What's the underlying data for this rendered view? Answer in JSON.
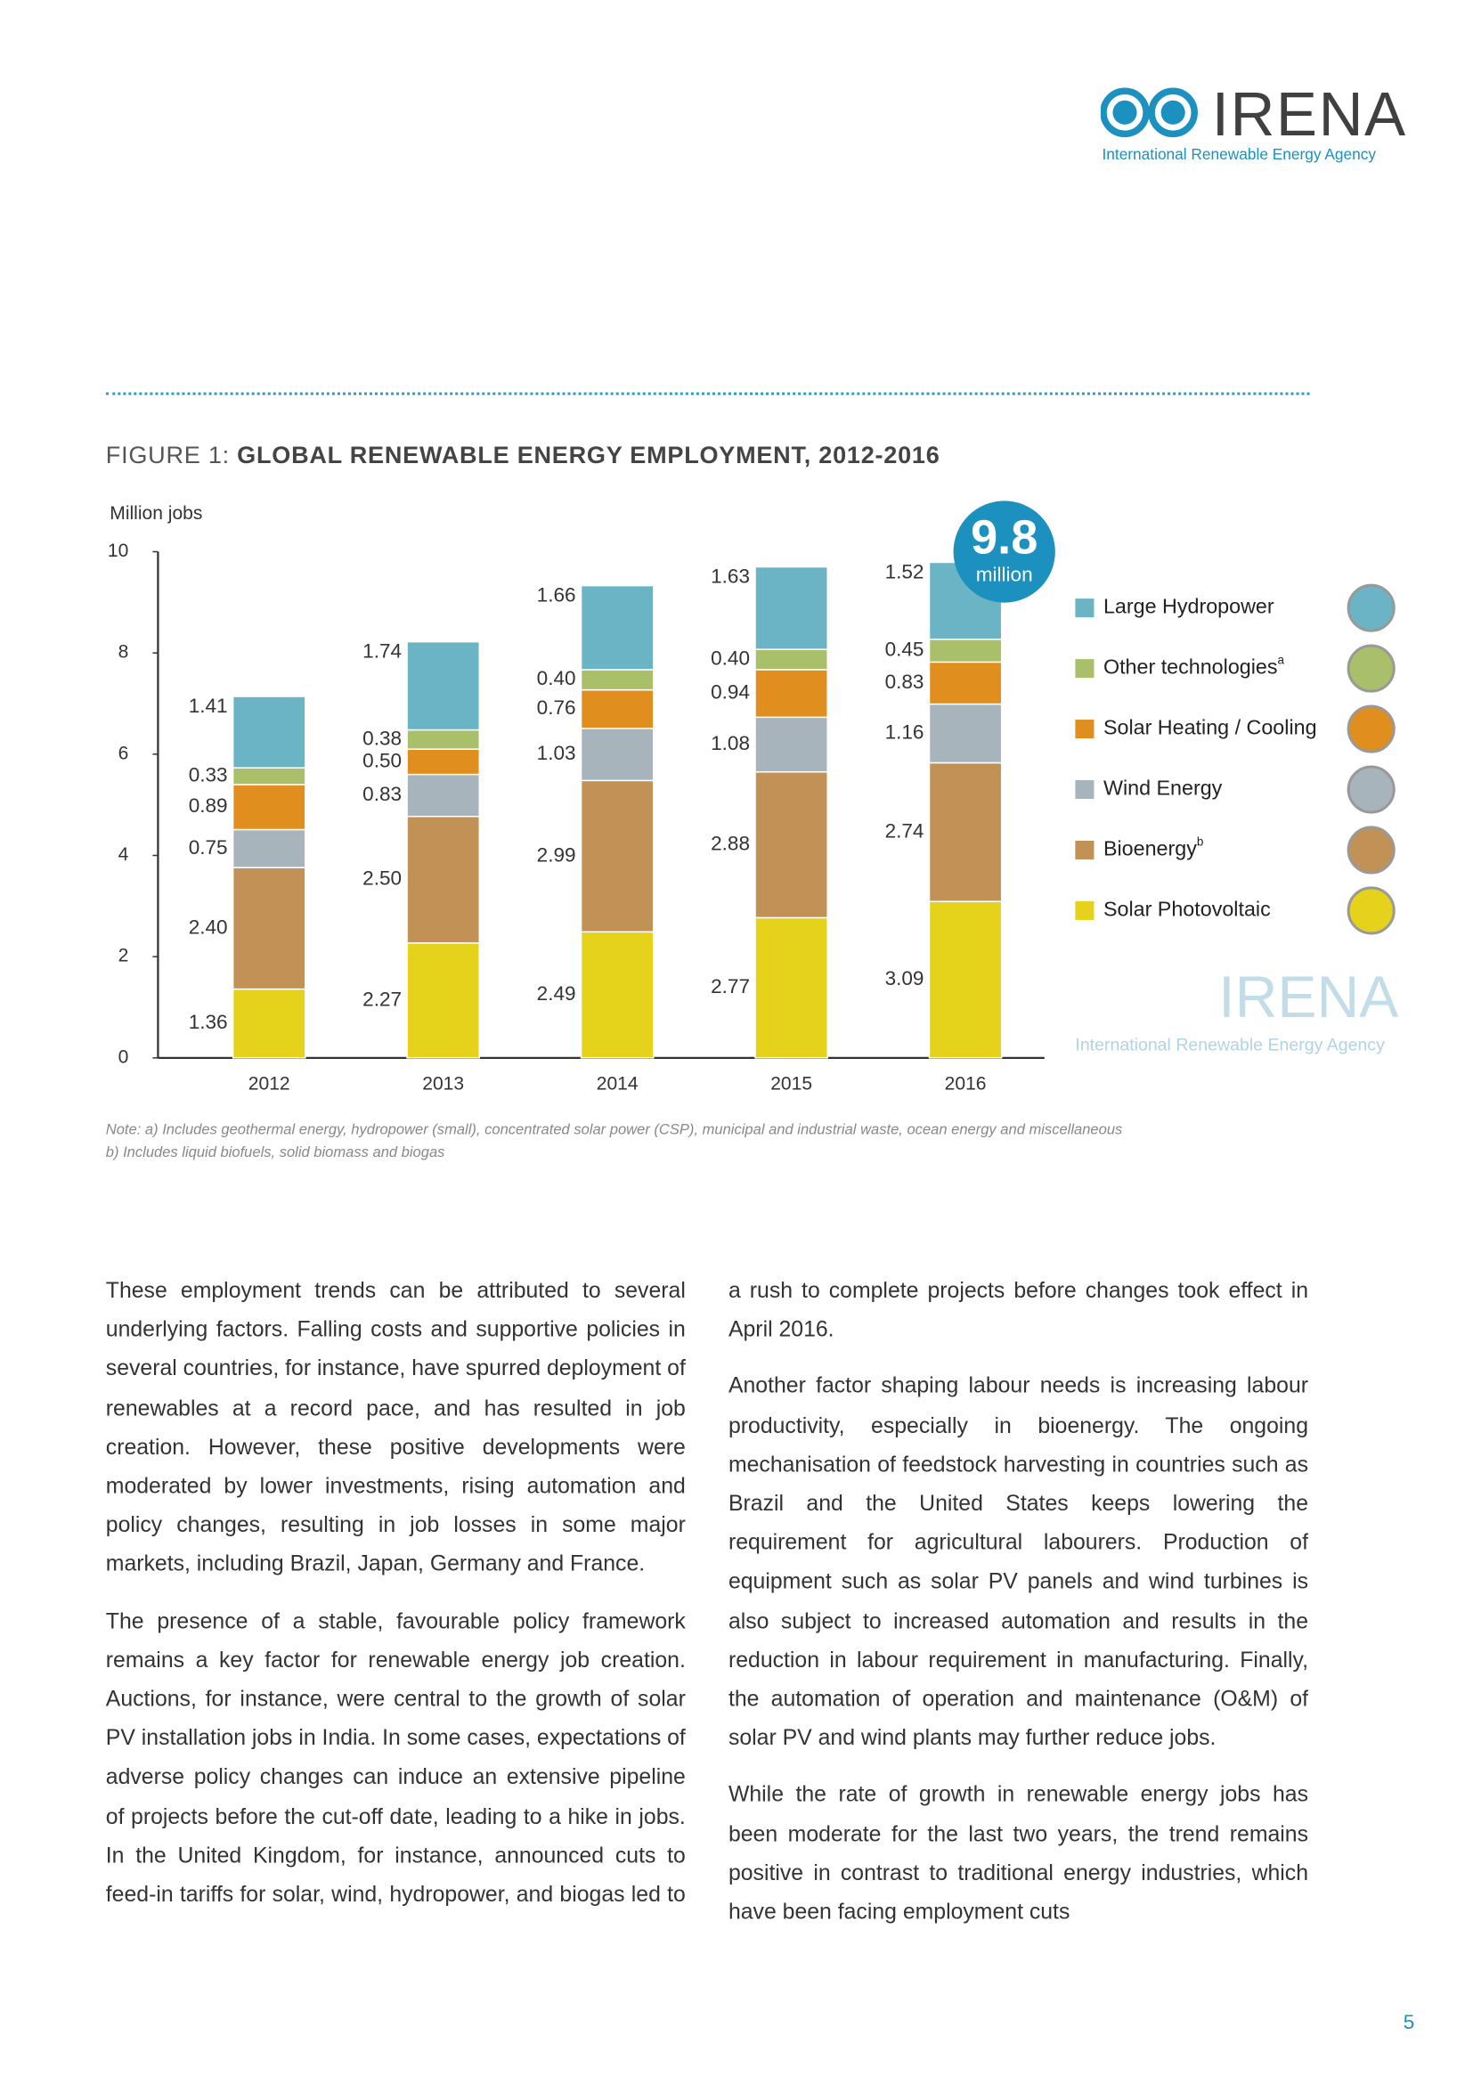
{
  "logo": {
    "name": "IRENA",
    "subtitle": "International Renewable Energy Agency"
  },
  "figure_label": "FIGURE 1:",
  "chart_data": {
    "type": "stacked_bar",
    "title": "GLOBAL RENEWABLE ENERGY EMPLOYMENT, 2012-2016",
    "ylabel": "Million jobs",
    "categories": [
      "2012",
      "2013",
      "2014",
      "2015",
      "2016"
    ],
    "ylim": [
      0,
      10
    ],
    "yticks": [
      0,
      2,
      4,
      6,
      8,
      10
    ],
    "annotation": {
      "value": "9.8",
      "unit": "million"
    },
    "legend": "right",
    "series": [
      {
        "name": "Solar Photovoltaic",
        "color": "#e5d21a",
        "values": [
          1.36,
          2.27,
          2.49,
          2.77,
          3.09
        ],
        "value_labels": [
          "1.36",
          "2.27",
          "2.49",
          "2.77",
          "3.09"
        ]
      },
      {
        "name": "Bioenergy",
        "superscript": "b",
        "color": "#c29156",
        "values": [
          2.4,
          2.5,
          2.99,
          2.88,
          2.74
        ],
        "value_labels": [
          "2.40",
          "2.50",
          "2.99",
          "2.88",
          "2.74"
        ]
      },
      {
        "name": "Wind Energy",
        "color": "#a7b4bc",
        "values": [
          0.75,
          0.83,
          1.03,
          1.08,
          1.16
        ],
        "value_labels": [
          "0.75",
          "0.83",
          "1.03",
          "1.08",
          "1.16"
        ]
      },
      {
        "name": "Solar Heating / Cooling",
        "color": "#e08e1e",
        "values": [
          0.89,
          0.5,
          0.76,
          0.94,
          0.83
        ],
        "value_labels": [
          "0.89",
          "0.50",
          "0.76",
          "0.94",
          "0.83"
        ]
      },
      {
        "name": "Other technologies",
        "superscript": "a",
        "color": "#a9bf6a",
        "values": [
          0.33,
          0.38,
          0.4,
          0.4,
          0.45
        ],
        "value_labels": [
          "0.33",
          "0.38",
          "0.40",
          "0.40",
          "0.45"
        ]
      },
      {
        "name": "Large Hydropower",
        "color": "#6ab4c6",
        "values": [
          1.41,
          1.74,
          1.66,
          1.63,
          1.52
        ],
        "value_labels": [
          "1.41",
          "1.74",
          "1.66",
          "1.63",
          "1.52"
        ]
      }
    ]
  },
  "note": [
    "Note: a) Includes geothermal energy, hydropower (small), concentrated solar power (CSP), municipal and industrial waste, ocean energy and miscellaneous",
    "b) Includes liquid biofuels, solid biomass and biogas"
  ],
  "body": [
    "These employment trends can be attributed to several underlying factors. Falling costs and supportive policies in several countries, for instance, have spurred deployment of renewables at a record pace, and has resulted in job creation. However, these positive developments were moderated by lower investments, rising automation and policy changes, resulting in job losses in some major markets, including Brazil, Japan, Germany and France.",
    "The presence of a stable, favourable policy framework remains a key factor for renewable energy job creation. Auctions, for instance, were central to the growth of solar PV installation jobs in India. In some cases, expectations of adverse policy changes can induce an extensive pipeline of projects before the cut-off date, leading to a hike in jobs. In the United Kingdom, for instance, announced cuts to feed-in tariffs for solar, wind, hydropower, and biogas led to a rush to complete projects before changes took effect in April 2016.",
    "Another factor shaping labour needs is increasing labour productivity, especially in bioenergy. The ongoing mechanisation of feedstock harvesting in countries such as Brazil and the United States keeps lowering the requirement for agricultural labourers. Production of equipment such as solar PV panels and wind turbines is also subject to increased automation and results in the reduction in labour requirement in manufacturing. Finally, the automation of operation and maintenance (O&M) of solar PV and wind plants may further reduce jobs.",
    "While the rate of growth in renewable energy jobs has been moderate for the last two years, the trend remains positive in contrast to traditional energy industries, which have been facing employment cuts"
  ],
  "page_number": "5"
}
